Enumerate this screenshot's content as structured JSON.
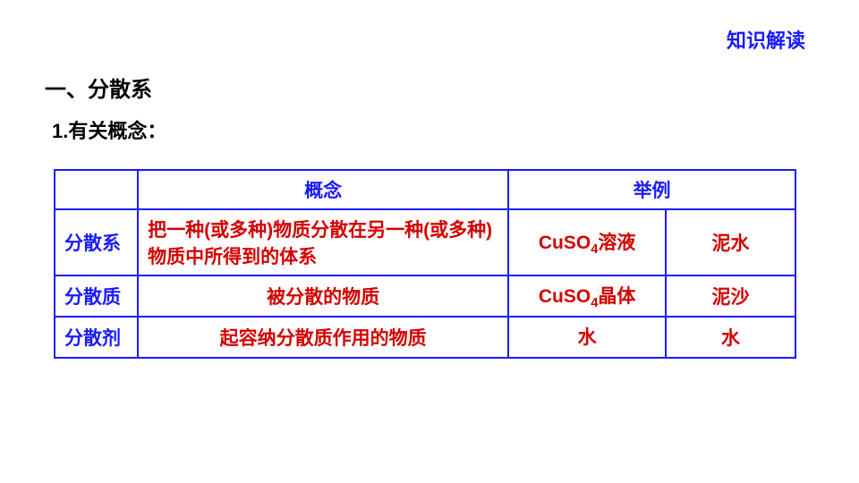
{
  "colors": {
    "blue": "#1a1aff",
    "red": "#d40000",
    "black": "#000000",
    "border": "#1a1aff"
  },
  "fonts": {
    "corner": 22,
    "section": 24,
    "sub": 22,
    "table": 21
  },
  "corner_label": "知识解读",
  "section_title": "一、分散系",
  "sub_title": "1.有关概念：",
  "table": {
    "header": {
      "c1": "",
      "c2": "概念",
      "c3": "举例"
    },
    "rows": [
      {
        "label": "分散系",
        "definition": "把一种(或多种)物质分散在另一种(或多种)物质中所得到的体系",
        "ex1_prefix": "CuSO",
        "ex1_sub": "4",
        "ex1_suffix": "溶液",
        "ex2": "泥水"
      },
      {
        "label": "分散质",
        "definition": "被分散的物质",
        "ex1_prefix": "CuSO",
        "ex1_sub": "4",
        "ex1_suffix": "晶体",
        "ex2": "泥沙"
      },
      {
        "label": "分散剂",
        "definition": "起容纳分散质作用的物质",
        "ex1_prefix": "水",
        "ex1_sub": "",
        "ex1_suffix": "",
        "ex2": "水"
      }
    ],
    "col_widths": [
      "90px",
      "400px",
      "170px",
      "140px"
    ]
  }
}
